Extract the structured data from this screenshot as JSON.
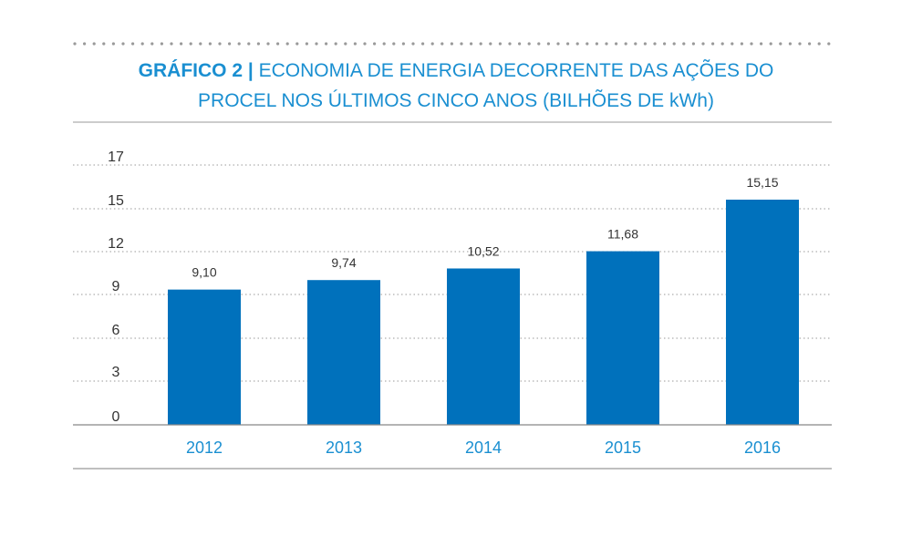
{
  "chart_data": {
    "type": "bar",
    "title_prefix": "GRÁFICO 2 |",
    "title_line1": "ECONOMIA DE ENERGIA DECORRENTE DAS AÇÕES DO",
    "title_line2": "PROCEL NOS ÚLTIMOS CINCO ANOS (BILHÕES DE kWh)",
    "categories": [
      "2012",
      "2013",
      "2014",
      "2015",
      "2016"
    ],
    "values": [
      9.1,
      9.74,
      10.52,
      11.68,
      15.15
    ],
    "value_labels": [
      "9,10",
      "9,74",
      "10,52",
      "11,68",
      "15,15"
    ],
    "y_ticks": [
      "0",
      "3",
      "6",
      "9",
      "12",
      "15",
      "17"
    ],
    "ylim": [
      0,
      17
    ],
    "xlabel": "",
    "ylabel": "",
    "grid": true,
    "colors": {
      "bar": "#0071bc",
      "title": "#1a8fd1",
      "category_label": "#1a8fd1",
      "text": "#333333",
      "grid": "#999999",
      "rule": "#999999"
    }
  }
}
